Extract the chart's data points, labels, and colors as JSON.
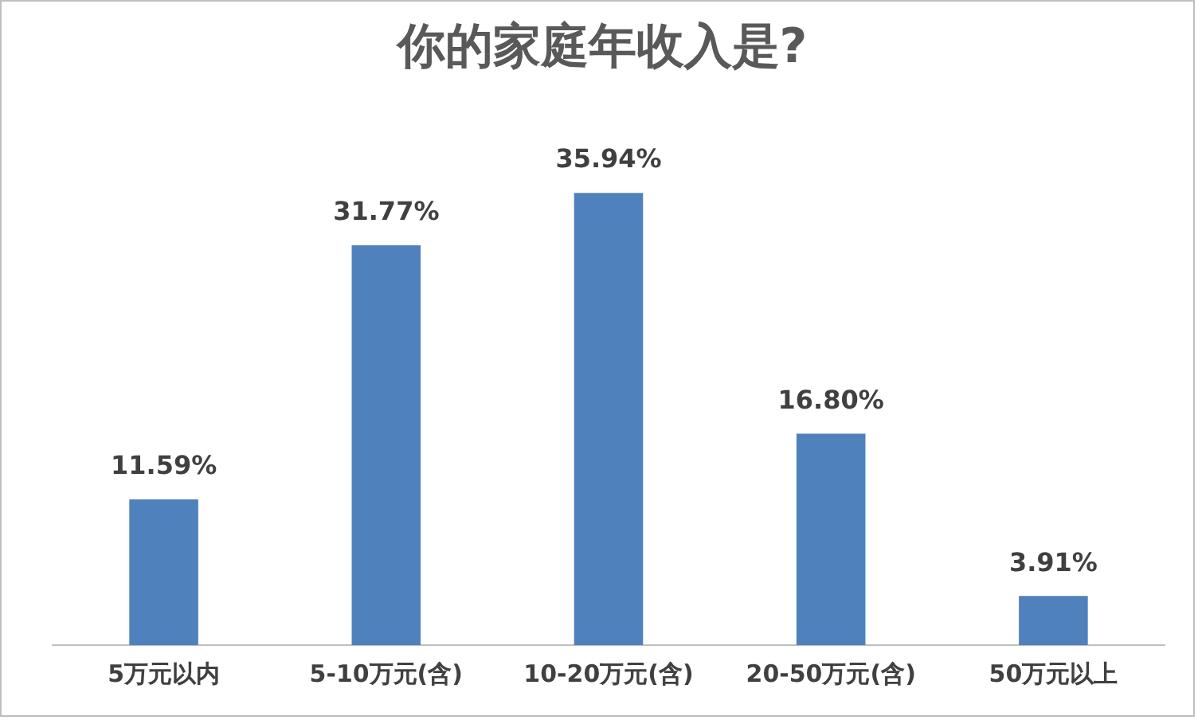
{
  "chart_data": {
    "type": "bar",
    "title": "你的家庭年收入是?",
    "categories": [
      "5万元以内",
      "5-10万元(含)",
      "10-20万元(含)",
      "20-50万元(含)",
      "50万元以上"
    ],
    "values": [
      11.59,
      31.77,
      35.94,
      16.8,
      3.91
    ],
    "value_labels": [
      "11.59%",
      "31.77%",
      "35.94%",
      "16.80%",
      "3.91%"
    ],
    "color": "#4f81bd",
    "grid": false,
    "legend": false
  }
}
